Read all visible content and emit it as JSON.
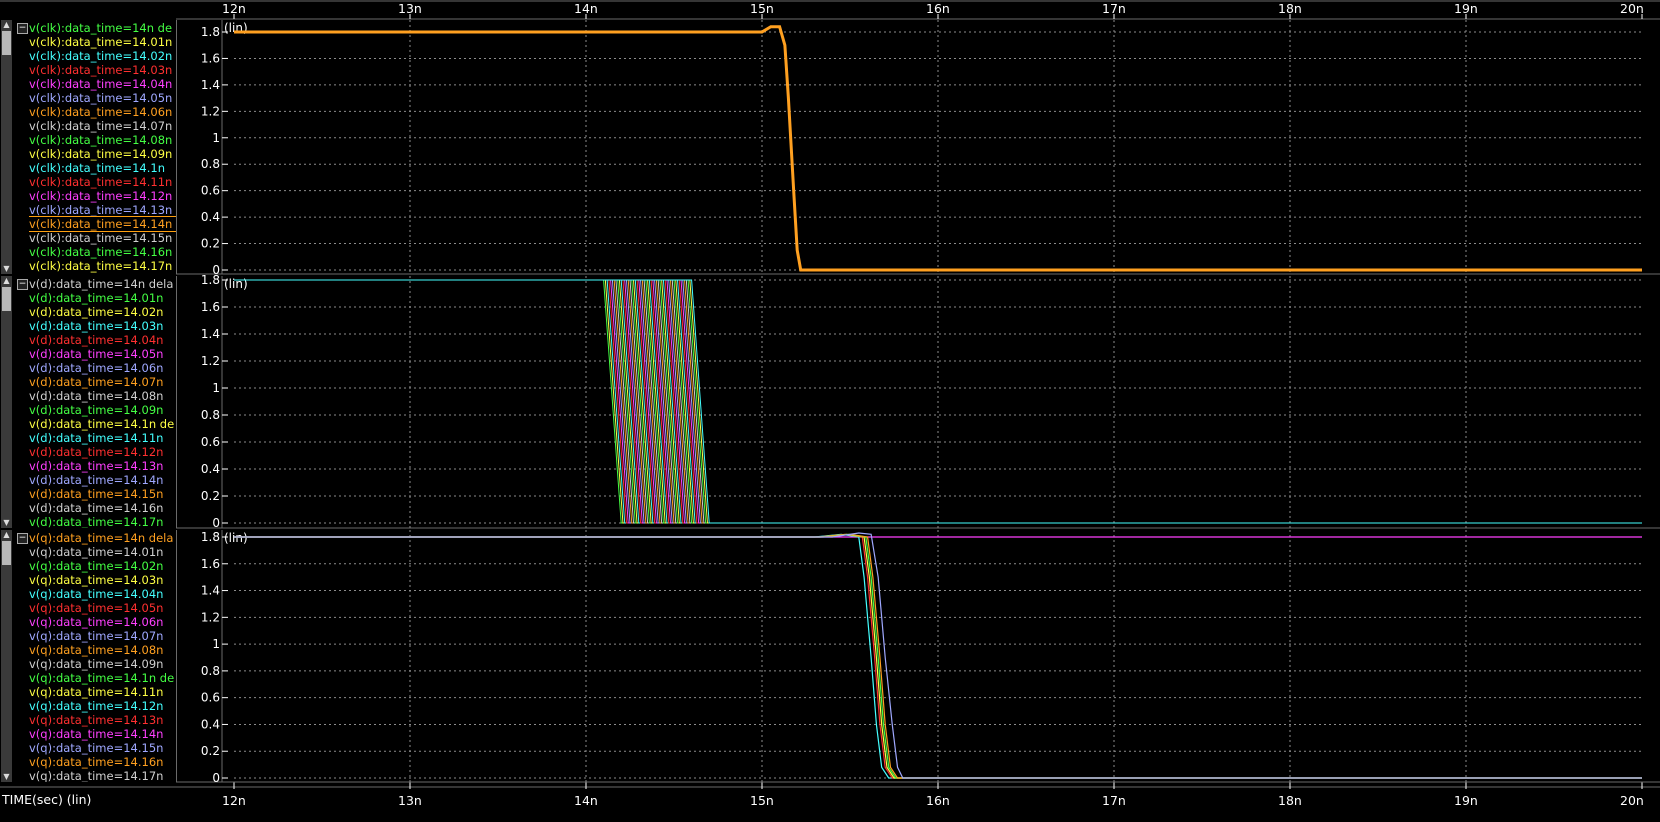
{
  "x_axis": {
    "title": "TIME(sec) (lin)",
    "ticks": [
      "12n",
      "13n",
      "14n",
      "15n",
      "16n",
      "17n",
      "18n",
      "19n",
      "20n"
    ]
  },
  "panels": [
    {
      "id": "clk",
      "scale_label": "(lin)",
      "y_ticks": [
        "1.8",
        "1.6",
        "1.4",
        "1.2",
        "1",
        "0.8",
        "0.6",
        "0.4",
        "0.2",
        "0"
      ],
      "legend": [
        {
          "text": "v(clk):data_time=14n de",
          "color": "#44ff44"
        },
        {
          "text": "v(clk):data_time=14.01n",
          "color": "#ffff44"
        },
        {
          "text": "v(clk):data_time=14.02n",
          "color": "#44ffff"
        },
        {
          "text": "v(clk):data_time=14.03n",
          "color": "#ff3030"
        },
        {
          "text": "v(clk):data_time=14.04n",
          "color": "#ff40ff"
        },
        {
          "text": "v(clk):data_time=14.05n",
          "color": "#9fa8ff"
        },
        {
          "text": "v(clk):data_time=14.06n",
          "color": "#ffa020"
        },
        {
          "text": "v(clk):data_time=14.07n",
          "color": "#d0d0d0"
        },
        {
          "text": "v(clk):data_time=14.08n",
          "color": "#44ff44"
        },
        {
          "text": "v(clk):data_time=14.09n",
          "color": "#ffff44"
        },
        {
          "text": "v(clk):data_time=14.1n",
          "color": "#44ffff"
        },
        {
          "text": "v(clk):data_time=14.11n",
          "color": "#ff3030"
        },
        {
          "text": "v(clk):data_time=14.12n",
          "color": "#ff40ff"
        },
        {
          "text": "v(clk):data_time=14.13n",
          "color": "#9fa8ff"
        },
        {
          "text": "v(clk):data_time=14.14n",
          "color": "#ffa020",
          "selected": true
        },
        {
          "text": "v(clk):data_time=14.15n",
          "color": "#d0d0d0"
        },
        {
          "text": "v(clk):data_time=14.16n",
          "color": "#44ff44"
        },
        {
          "text": "v(clk):data_time=14.17n",
          "color": "#ffff44"
        }
      ]
    },
    {
      "id": "d",
      "scale_label": "(lin)",
      "y_ticks": [
        "1.8",
        "1.6",
        "1.4",
        "1.2",
        "1",
        "0.8",
        "0.6",
        "0.4",
        "0.2",
        "0"
      ],
      "legend": [
        {
          "text": "v(d):data_time=14n dela",
          "color": "#d0d0d0"
        },
        {
          "text": "v(d):data_time=14.01n",
          "color": "#44ff44"
        },
        {
          "text": "v(d):data_time=14.02n",
          "color": "#ffff44"
        },
        {
          "text": "v(d):data_time=14.03n",
          "color": "#44ffff"
        },
        {
          "text": "v(d):data_time=14.04n",
          "color": "#ff3030"
        },
        {
          "text": "v(d):data_time=14.05n",
          "color": "#ff40ff"
        },
        {
          "text": "v(d):data_time=14.06n",
          "color": "#9fa8ff"
        },
        {
          "text": "v(d):data_time=14.07n",
          "color": "#ffa020"
        },
        {
          "text": "v(d):data_time=14.08n",
          "color": "#d0d0d0"
        },
        {
          "text": "v(d):data_time=14.09n",
          "color": "#44ff44"
        },
        {
          "text": "v(d):data_time=14.1n de",
          "color": "#ffff44"
        },
        {
          "text": "v(d):data_time=14.11n",
          "color": "#44ffff"
        },
        {
          "text": "v(d):data_time=14.12n",
          "color": "#ff3030"
        },
        {
          "text": "v(d):data_time=14.13n",
          "color": "#ff40ff"
        },
        {
          "text": "v(d):data_time=14.14n",
          "color": "#9fa8ff"
        },
        {
          "text": "v(d):data_time=14.15n",
          "color": "#ffa020"
        },
        {
          "text": "v(d):data_time=14.16n",
          "color": "#d0d0d0"
        },
        {
          "text": "v(d):data_time=14.17n",
          "color": "#44ff44"
        }
      ]
    },
    {
      "id": "q",
      "scale_label": "(lin)",
      "y_ticks": [
        "1.8",
        "1.6",
        "1.4",
        "1.2",
        "1",
        "0.8",
        "0.6",
        "0.4",
        "0.2",
        "0"
      ],
      "legend": [
        {
          "text": "v(q):data_time=14n dela",
          "color": "#ffa020"
        },
        {
          "text": "v(q):data_time=14.01n",
          "color": "#d0d0d0"
        },
        {
          "text": "v(q):data_time=14.02n",
          "color": "#44ff44"
        },
        {
          "text": "v(q):data_time=14.03n",
          "color": "#ffff44"
        },
        {
          "text": "v(q):data_time=14.04n",
          "color": "#44ffff"
        },
        {
          "text": "v(q):data_time=14.05n",
          "color": "#ff3030"
        },
        {
          "text": "v(q):data_time=14.06n",
          "color": "#ff40ff"
        },
        {
          "text": "v(q):data_time=14.07n",
          "color": "#9fa8ff"
        },
        {
          "text": "v(q):data_time=14.08n",
          "color": "#ffa020"
        },
        {
          "text": "v(q):data_time=14.09n",
          "color": "#d0d0d0"
        },
        {
          "text": "v(q):data_time=14.1n de",
          "color": "#44ff44"
        },
        {
          "text": "v(q):data_time=14.11n",
          "color": "#ffff44"
        },
        {
          "text": "v(q):data_time=14.12n",
          "color": "#44ffff"
        },
        {
          "text": "v(q):data_time=14.13n",
          "color": "#ff3030"
        },
        {
          "text": "v(q):data_time=14.14n",
          "color": "#ff40ff"
        },
        {
          "text": "v(q):data_time=14.15n",
          "color": "#9fa8ff"
        },
        {
          "text": "v(q):data_time=14.16n",
          "color": "#ffa020"
        },
        {
          "text": "v(q):data_time=14.17n",
          "color": "#d0d0d0"
        }
      ]
    }
  ],
  "chart_data": [
    {
      "type": "line",
      "signal": "v(clk)",
      "xlabel": "TIME(sec) (lin)",
      "xlim": [
        12,
        20
      ],
      "x_unit": "n",
      "ylim": [
        0,
        1.8
      ],
      "grid": true,
      "series": [
        {
          "name": "v(clk):data_time=14.14n",
          "color": "#ffa020",
          "x": [
            12,
            14.98,
            15.0,
            15.05,
            15.1,
            15.13,
            15.15,
            15.18,
            15.2,
            15.22,
            20
          ],
          "y": [
            1.8,
            1.8,
            1.8,
            1.84,
            1.84,
            1.7,
            1.3,
            0.6,
            0.15,
            0.0,
            0.0
          ]
        }
      ]
    },
    {
      "type": "line",
      "signal": "v(d)",
      "xlabel": "TIME(sec) (lin)",
      "xlim": [
        12,
        20
      ],
      "x_unit": "n",
      "ylim": [
        0,
        1.8
      ],
      "grid": true,
      "falling_edge": {
        "start_delays": [
          14.1,
          14.11,
          14.12,
          14.13,
          14.14,
          14.15,
          14.16,
          14.17,
          14.18,
          14.19,
          14.2,
          14.21,
          14.22,
          14.23,
          14.24,
          14.25,
          14.26,
          14.27,
          14.28,
          14.29,
          14.3,
          14.31,
          14.32,
          14.33,
          14.34,
          14.35,
          14.36,
          14.37,
          14.38,
          14.39,
          14.4,
          14.41,
          14.42,
          14.43,
          14.44,
          14.45,
          14.46,
          14.47,
          14.48,
          14.49,
          14.5,
          14.51,
          14.52,
          14.53,
          14.54,
          14.55,
          14.56,
          14.57,
          14.58,
          14.59,
          14.6
        ],
        "fall_time": 0.1,
        "high": 1.8,
        "low": 0
      },
      "colors": [
        "#44ff44",
        "#ffff44",
        "#44ffff",
        "#ff3030",
        "#ff40ff",
        "#9fa8ff",
        "#ffa020",
        "#d0d0d0"
      ]
    },
    {
      "type": "line",
      "signal": "v(q)",
      "xlabel": "TIME(sec) (lin)",
      "xlim": [
        12,
        20
      ],
      "x_unit": "n",
      "ylim": [
        0,
        1.8
      ],
      "grid": true,
      "series": [
        {
          "name": "v(q):data_time=14.14n",
          "color": "#ff40ff",
          "x": [
            12,
            20
          ],
          "y": [
            1.8,
            1.8
          ]
        },
        {
          "name": "v(q):data_time=14.12n",
          "color": "#44ffff",
          "x": [
            12,
            15.3,
            15.45,
            15.55,
            15.58,
            15.62,
            15.65,
            15.68,
            15.72,
            20
          ],
          "y": [
            1.8,
            1.8,
            1.82,
            1.8,
            1.5,
            0.9,
            0.4,
            0.08,
            0.0,
            0.0
          ]
        },
        {
          "name": "v(q):data_time=14.13n",
          "color": "#ff3030",
          "x": [
            12,
            15.32,
            15.47,
            15.57,
            15.6,
            15.64,
            15.67,
            15.7,
            15.74,
            20
          ],
          "y": [
            1.8,
            1.8,
            1.82,
            1.8,
            1.5,
            0.9,
            0.4,
            0.08,
            0.0,
            0.0
          ]
        },
        {
          "name": "v(q):data_time=14.11n",
          "color": "#ffff44",
          "x": [
            12,
            15.33,
            15.48,
            15.58,
            15.61,
            15.65,
            15.68,
            15.71,
            15.75,
            20
          ],
          "y": [
            1.8,
            1.8,
            1.82,
            1.8,
            1.5,
            0.9,
            0.4,
            0.08,
            0.0,
            0.0
          ]
        },
        {
          "name": "v(q):data_time=14.1n",
          "color": "#44ff44",
          "x": [
            12,
            15.34,
            15.49,
            15.59,
            15.62,
            15.66,
            15.69,
            15.72,
            15.76,
            20
          ],
          "y": [
            1.8,
            1.8,
            1.82,
            1.8,
            1.5,
            0.9,
            0.4,
            0.08,
            0.0,
            0.0
          ]
        },
        {
          "name": "v(q):data_time=14.16n",
          "color": "#ffa020",
          "x": [
            12,
            15.35,
            15.5,
            15.6,
            15.63,
            15.67,
            15.7,
            15.73,
            15.77,
            20
          ],
          "y": [
            1.8,
            1.8,
            1.82,
            1.8,
            1.5,
            0.9,
            0.4,
            0.08,
            0.0,
            0.0
          ]
        },
        {
          "name": "v(q):data_time=14.15n",
          "color": "#9fa8ff",
          "x": [
            12,
            15.4,
            15.55,
            15.62,
            15.66,
            15.7,
            15.74,
            15.77,
            15.8,
            20
          ],
          "y": [
            1.8,
            1.8,
            1.83,
            1.82,
            1.5,
            0.9,
            0.4,
            0.08,
            0.0,
            0.0
          ]
        }
      ]
    }
  ]
}
